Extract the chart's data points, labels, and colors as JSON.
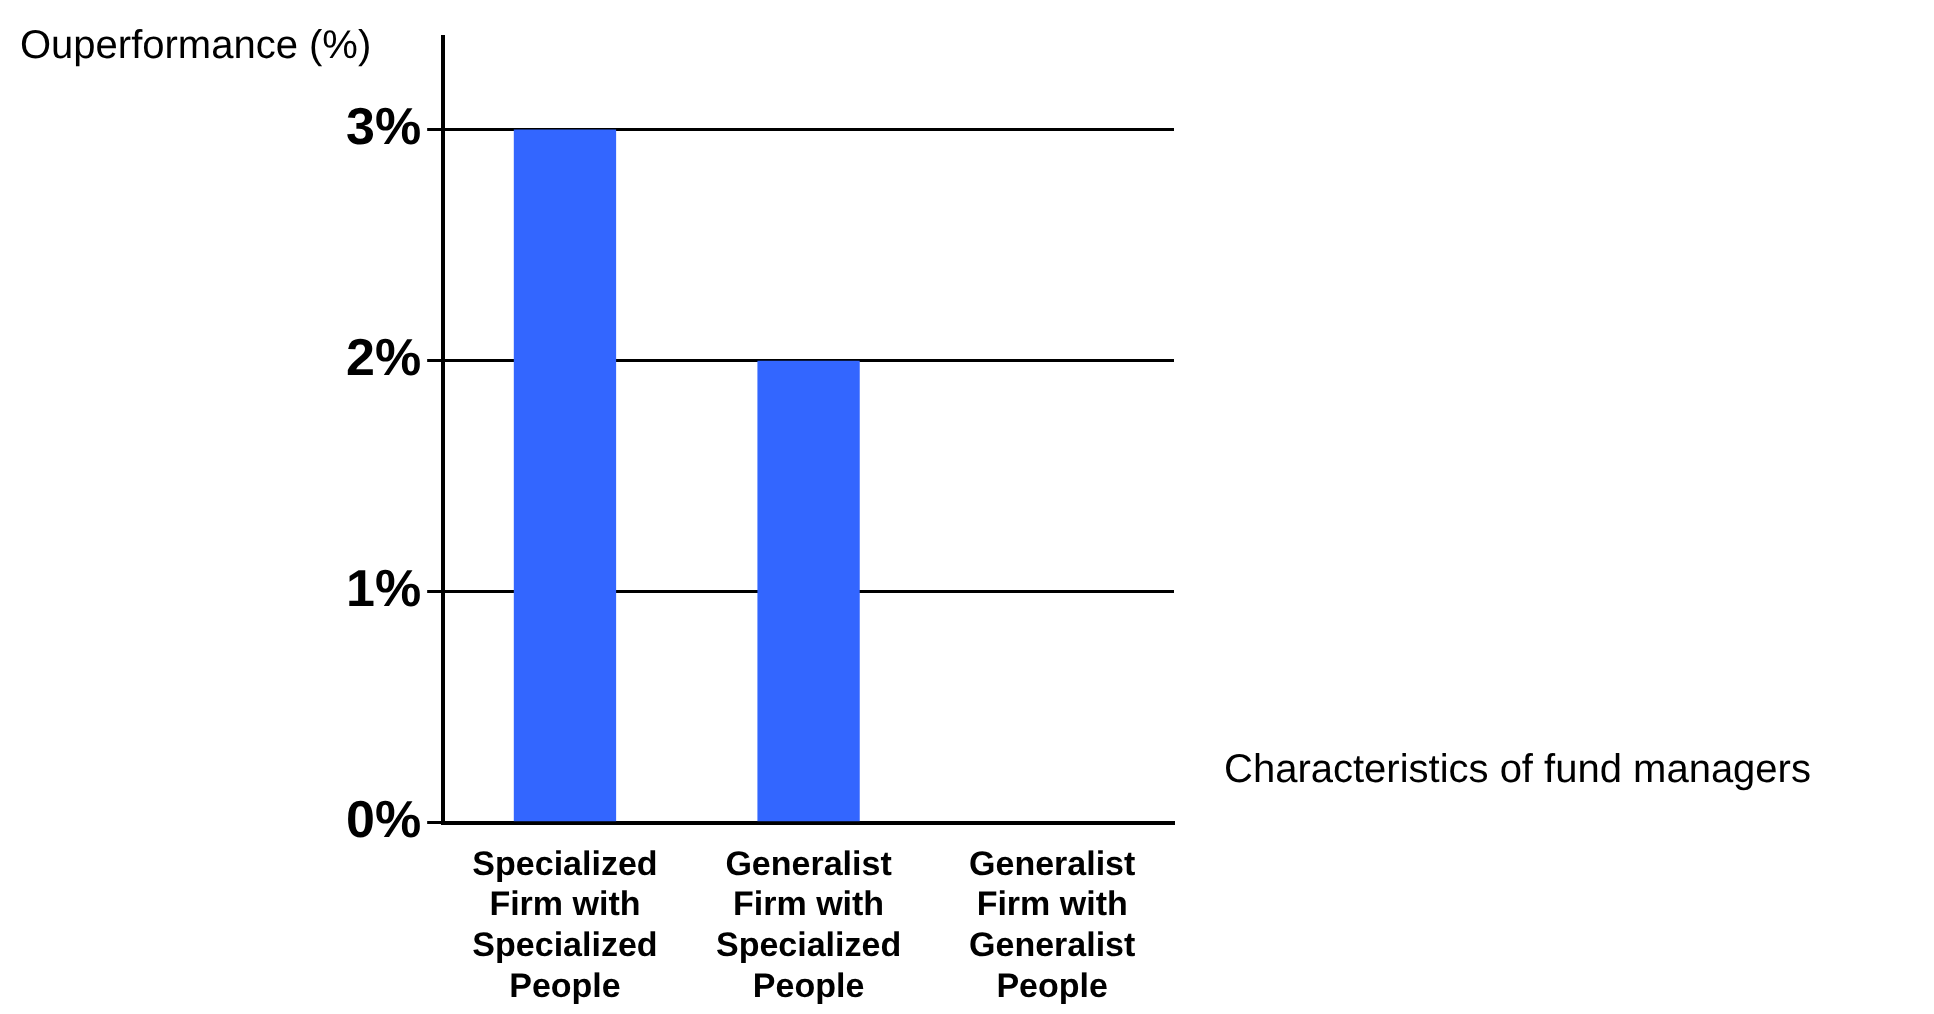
{
  "chart_data": {
    "type": "bar",
    "ylabel": "Ouperformance (%)",
    "xlabel": "Characteristics of fund managers",
    "categories": [
      "Specialized Firm with Specialized People",
      "Generalist Firm with Specialized People",
      "Generalist Firm with Generalist People"
    ],
    "values": [
      3,
      2,
      0
    ],
    "color": "#3366ff",
    "ylim": [
      0,
      3.4
    ],
    "yticks": [
      {
        "value": 0,
        "label": "0%"
      },
      {
        "value": 1,
        "label": "1%"
      },
      {
        "value": 2,
        "label": "2%"
      },
      {
        "value": 3,
        "label": "3%"
      }
    ],
    "grid": "y",
    "legend": false
  }
}
